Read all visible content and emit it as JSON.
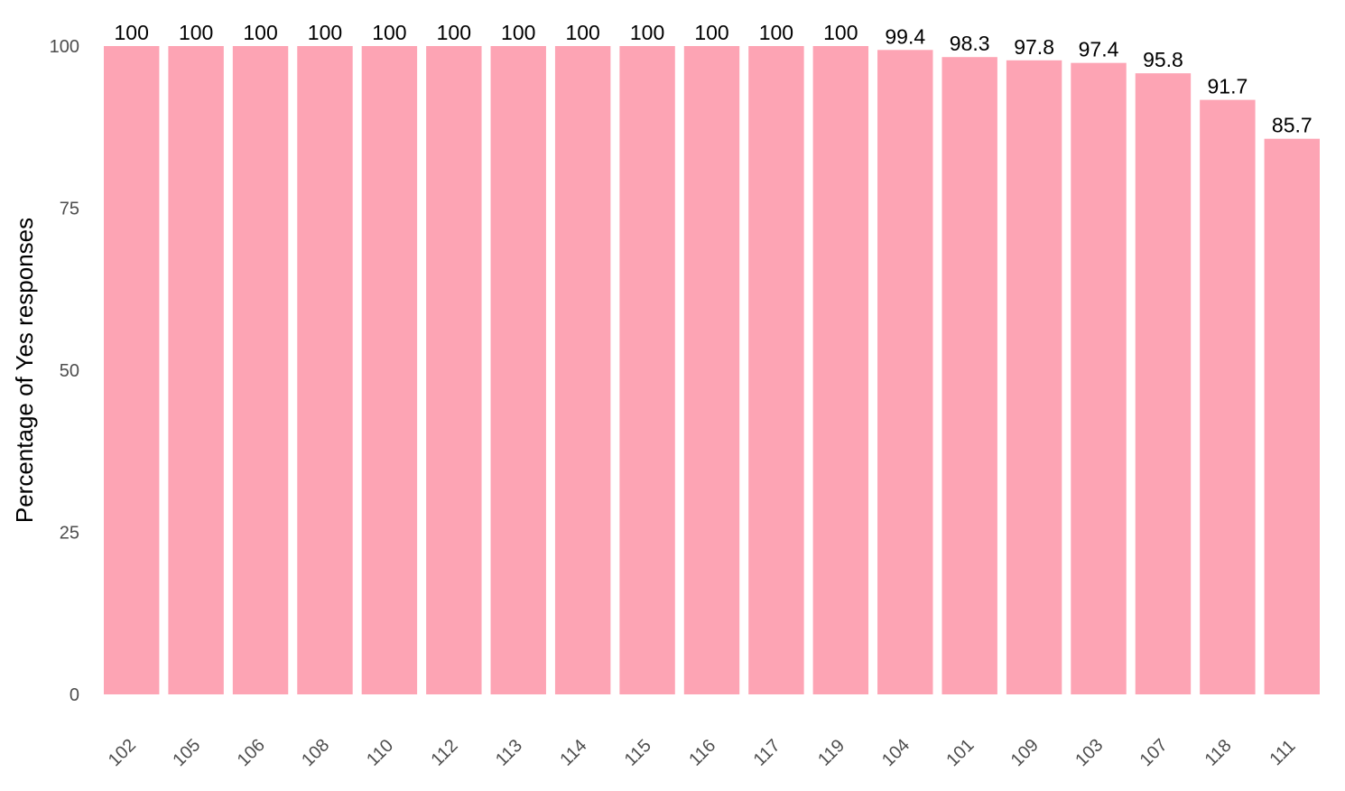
{
  "chart_data": {
    "type": "bar",
    "categories": [
      "102",
      "105",
      "106",
      "108",
      "110",
      "112",
      "113",
      "114",
      "115",
      "116",
      "117",
      "119",
      "104",
      "101",
      "109",
      "103",
      "107",
      "118",
      "111"
    ],
    "values": [
      100,
      100,
      100,
      100,
      100,
      100,
      100,
      100,
      100,
      100,
      100,
      100,
      99.4,
      98.3,
      97.8,
      97.4,
      95.8,
      91.7,
      85.7
    ],
    "data_labels": [
      "100",
      "100",
      "100",
      "100",
      "100",
      "100",
      "100",
      "100",
      "100",
      "100",
      "100",
      "100",
      "99.4",
      "98.3",
      "97.8",
      "97.4",
      "95.8",
      "91.7",
      "85.7"
    ],
    "ylabel": "Percentage of Yes responses",
    "xlabel": "",
    "ylim": [
      0,
      100
    ],
    "yticks": [
      0,
      25,
      50,
      75,
      100
    ],
    "grid": false,
    "bar_color": "#fda4b4"
  }
}
